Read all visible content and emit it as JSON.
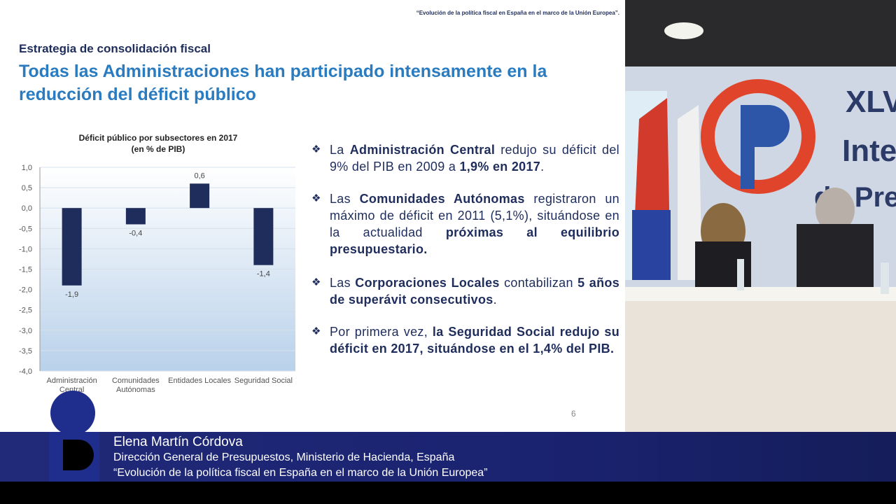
{
  "header": {
    "title": "“Evolución de la política fiscal en España en el marco de la Unión Europea”."
  },
  "slide": {
    "kicker": "Estrategia de consolidación fiscal",
    "title": "Todas las Administraciones han participado intensamente en la reducción del déficit público",
    "page_number": "6",
    "bullets": [
      [
        {
          "text": "La "
        },
        {
          "text": "Administración Central",
          "bold": true
        },
        {
          "text": " redujo su déficit del 9% del PIB en 2009 a "
        },
        {
          "text": "1,9% en 2017",
          "bold": true
        },
        {
          "text": "."
        }
      ],
      [
        {
          "text": "Las "
        },
        {
          "text": "Comunidades Autónomas",
          "bold": true
        },
        {
          "text": " registraron un máximo de déficit en 2011 (5,1%), situándose en la actualidad "
        },
        {
          "text": "próximas al equilibrio presupuestario.",
          "bold": true
        }
      ],
      [
        {
          "text": "Las "
        },
        {
          "text": "Corporaciones Locales",
          "bold": true
        },
        {
          "text": " contabilizan "
        },
        {
          "text": "5 años de superávit consecutivos",
          "bold": true
        },
        {
          "text": "."
        }
      ],
      [
        {
          "text": "Por primera vez, "
        },
        {
          "text": "la Seguridad Social redujo su déficit en 2017, situándose en el 1,4% del PIB.",
          "bold": true
        }
      ]
    ]
  },
  "chart_data": {
    "type": "bar",
    "title": "Déficit público por subsectores en 2017",
    "subtitle": "(en % de PIB)",
    "categories": [
      "Administración Central",
      "Comunidades Autónomas",
      "Entidades Locales",
      "Seguridad Social"
    ],
    "values": [
      -1.9,
      -0.4,
      0.6,
      -1.4
    ],
    "value_labels": [
      "-1,9",
      "-0,4",
      "0,6",
      "-1,4"
    ],
    "color": "#1f2d5c",
    "ylim": [
      -4,
      1
    ],
    "yticks": [
      {
        "value": 1,
        "label": "1,0"
      },
      {
        "value": 0.5,
        "label": "0,5"
      },
      {
        "value": 0,
        "label": "0,0"
      },
      {
        "value": -0.5,
        "label": "-0,5"
      },
      {
        "value": -1,
        "label": "-1,0"
      },
      {
        "value": -1.5,
        "label": "-1,5"
      },
      {
        "value": -2,
        "label": "-2,0"
      },
      {
        "value": -2.5,
        "label": "-2,5"
      },
      {
        "value": -3,
        "label": "-3,0"
      },
      {
        "value": -3.5,
        "label": "-3,5"
      },
      {
        "value": -4,
        "label": "-4,0"
      }
    ],
    "grid": true
  },
  "lower_third": {
    "name": "Elena Martín Córdova",
    "affiliation": "Dirección General de Presupuestos, Ministerio de Hacienda, España",
    "talk": "“Evolución de la política fiscal en España en el marco de la Unión Europea”"
  }
}
